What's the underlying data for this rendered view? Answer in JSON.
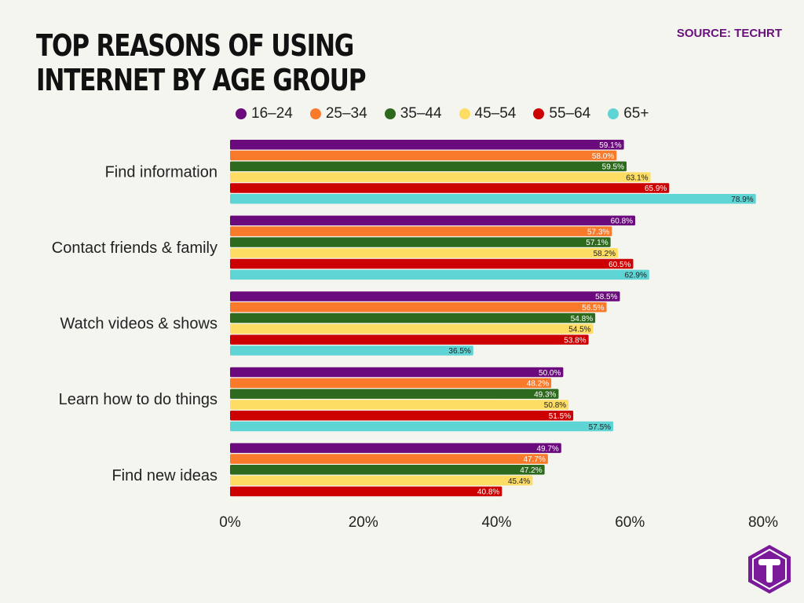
{
  "title": "Top reasons of using internet by age group",
  "source": "SOURCE: TECHRT",
  "chart_data": {
    "type": "bar",
    "orientation": "horizontal",
    "title": "Top reasons of using internet by age group",
    "categories": [
      "Find information",
      "Contact friends & family",
      "Watch videos & shows",
      "Learn how to do things",
      "Find new ideas"
    ],
    "series": [
      {
        "name": "16–24",
        "color": "#6a0a7c",
        "text_color": "#ffffff",
        "values": [
          59.1,
          60.8,
          58.5,
          50.0,
          49.7
        ]
      },
      {
        "name": "25–34",
        "color": "#f97a2a",
        "text_color": "#ffffff",
        "values": [
          58.0,
          57.3,
          56.5,
          48.2,
          47.7
        ]
      },
      {
        "name": "35–44",
        "color": "#2e6a1d",
        "text_color": "#ffffff",
        "values": [
          59.5,
          57.1,
          54.8,
          49.3,
          47.2
        ]
      },
      {
        "name": "45–54",
        "color": "#fddd63",
        "text_color": "#222222",
        "values": [
          63.1,
          58.2,
          54.5,
          50.8,
          45.4
        ]
      },
      {
        "name": "55–64",
        "color": "#cc0000",
        "text_color": "#ffffff",
        "values": [
          65.9,
          60.5,
          53.8,
          51.5,
          40.8
        ]
      },
      {
        "name": "65+",
        "color": "#5fd4d4",
        "text_color": "#222222",
        "values": [
          78.9,
          62.9,
          36.5,
          57.5,
          null
        ]
      }
    ],
    "xlim": [
      0,
      80
    ],
    "xticks": [
      "0%",
      "20%",
      "40%",
      "60%",
      "80%"
    ],
    "grid": false,
    "legend": "top"
  }
}
